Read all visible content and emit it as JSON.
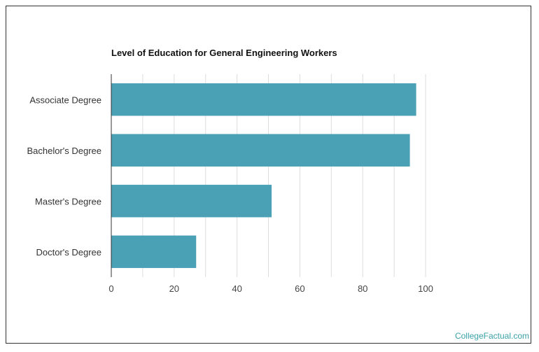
{
  "chart_data": {
    "type": "bar",
    "orientation": "horizontal",
    "title": "Level of Education for General Engineering Workers",
    "categories": [
      "Associate Degree",
      "Bachelor's Degree",
      "Master's Degree",
      "Doctor's Degree"
    ],
    "values": [
      97,
      95,
      51,
      27
    ],
    "xlim": [
      0,
      100
    ],
    "xticks": [
      "0",
      "20",
      "40",
      "60",
      "80",
      "100"
    ],
    "grid": true,
    "bar_color": "#4aa0b5",
    "grid_color": "#dddddd",
    "xlabel": "",
    "ylabel": ""
  },
  "credit": "CollegeFactual.com"
}
